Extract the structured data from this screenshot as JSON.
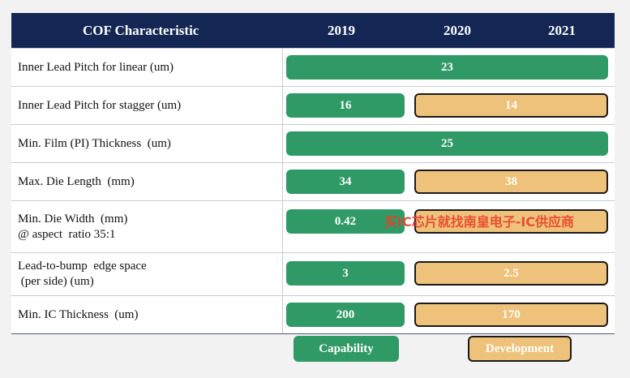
{
  "header": {
    "title": "COF Characteristic",
    "years": [
      "2019",
      "2020",
      "2021"
    ],
    "background": "#132654"
  },
  "colors": {
    "capability": "#2f9a65",
    "development": "#eec27a"
  },
  "rows": [
    {
      "label": "Inner Lead Pitch for linear (um)",
      "capability": "23",
      "development": ""
    },
    {
      "label": "Inner Lead Pitch for stagger (um)",
      "capability": "16",
      "development": "14"
    },
    {
      "label": "Min. Film (PI) Thickness  (um)",
      "capability": "25",
      "development": ""
    },
    {
      "label": "Max. Die Length  (mm)",
      "capability": "34",
      "development": "38"
    },
    {
      "label": "Min. Die Width  (mm)",
      "label2": "@ aspect  ratio 35:1",
      "capability": "0.42",
      "development": ""
    },
    {
      "label": "Lead-to-bump  edge space",
      "label2": " (per side) (um)",
      "capability": "3",
      "development": "2.5"
    },
    {
      "label": "Min. IC Thickness  (um)",
      "capability": "200",
      "development": "170"
    }
  ],
  "legend": {
    "capability": "Capability",
    "development": "Development"
  },
  "watermark": "买IC芯片就找南皇电子-IC供应商"
}
